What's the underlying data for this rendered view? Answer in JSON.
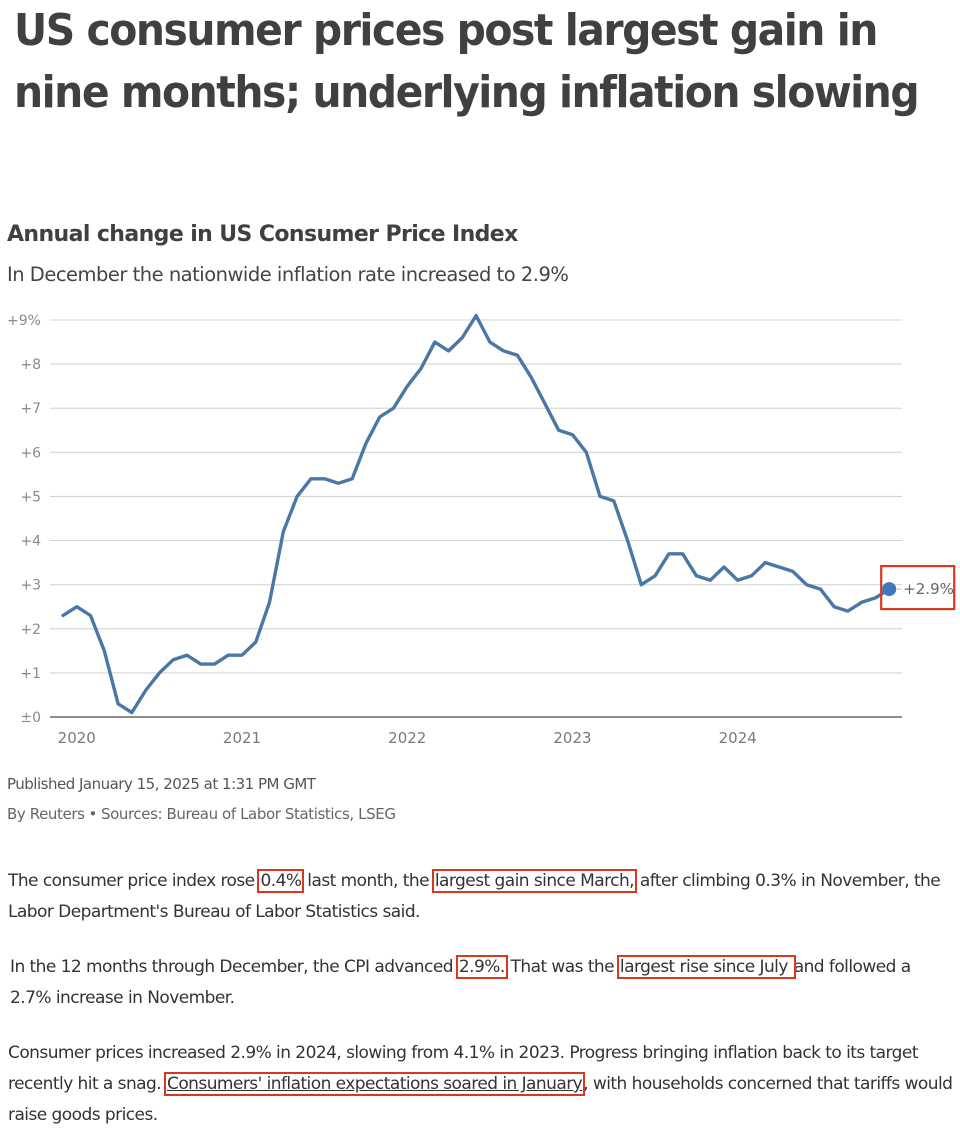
{
  "article": {
    "headline": "US consumer prices post largest gain in nine months; underlying inflation slowing"
  },
  "chart_data": {
    "type": "line",
    "title": "Annual change in US Consumer Price Index",
    "subtitle": "In December the nationwide inflation rate increased to 2.9%",
    "xlabel": "",
    "ylabel": "",
    "ylim": [
      0,
      9
    ],
    "grid": true,
    "legend": "none",
    "y_ticks": [
      {
        "value": 0,
        "label": "±0"
      },
      {
        "value": 1,
        "label": "+1"
      },
      {
        "value": 2,
        "label": "+2"
      },
      {
        "value": 3,
        "label": "+3"
      },
      {
        "value": 4,
        "label": "+4"
      },
      {
        "value": 5,
        "label": "+5"
      },
      {
        "value": 6,
        "label": "+6"
      },
      {
        "value": 7,
        "label": "+7"
      },
      {
        "value": 8,
        "label": "+8"
      },
      {
        "value": 9,
        "label": "+9%"
      }
    ],
    "x_ticks": [
      {
        "index": 1,
        "label": "2020"
      },
      {
        "index": 13,
        "label": "2021"
      },
      {
        "index": 25,
        "label": "2022"
      },
      {
        "index": 37,
        "label": "2023"
      },
      {
        "index": 49,
        "label": "2024"
      }
    ],
    "x_range": [
      "2019-12",
      "2024-12"
    ],
    "series": [
      {
        "name": "US CPI annual change (%)",
        "color": "#4a78a6",
        "x": [
          "2019-12",
          "2020-01",
          "2020-02",
          "2020-03",
          "2020-04",
          "2020-05",
          "2020-06",
          "2020-07",
          "2020-08",
          "2020-09",
          "2020-10",
          "2020-11",
          "2020-12",
          "2021-01",
          "2021-02",
          "2021-03",
          "2021-04",
          "2021-05",
          "2021-06",
          "2021-07",
          "2021-08",
          "2021-09",
          "2021-10",
          "2021-11",
          "2021-12",
          "2022-01",
          "2022-02",
          "2022-03",
          "2022-04",
          "2022-05",
          "2022-06",
          "2022-07",
          "2022-08",
          "2022-09",
          "2022-10",
          "2022-11",
          "2022-12",
          "2023-01",
          "2023-02",
          "2023-03",
          "2023-04",
          "2023-05",
          "2023-06",
          "2023-07",
          "2023-08",
          "2023-09",
          "2023-10",
          "2023-11",
          "2023-12",
          "2024-01",
          "2024-02",
          "2024-03",
          "2024-04",
          "2024-05",
          "2024-06",
          "2024-07",
          "2024-08",
          "2024-09",
          "2024-10",
          "2024-11",
          "2024-12"
        ],
        "values": [
          2.3,
          2.5,
          2.3,
          1.5,
          0.3,
          0.1,
          0.6,
          1.0,
          1.3,
          1.4,
          1.2,
          1.2,
          1.4,
          1.4,
          1.7,
          2.6,
          4.2,
          5.0,
          5.4,
          5.4,
          5.3,
          5.4,
          6.2,
          6.8,
          7.0,
          7.5,
          7.9,
          8.5,
          8.3,
          8.6,
          9.1,
          8.5,
          8.3,
          8.2,
          7.7,
          7.1,
          6.5,
          6.4,
          6.0,
          5.0,
          4.9,
          4.0,
          3.0,
          3.2,
          3.7,
          3.7,
          3.2,
          3.1,
          3.4,
          3.1,
          3.2,
          3.5,
          3.4,
          3.3,
          3.0,
          2.9,
          2.5,
          2.4,
          2.6,
          2.7,
          2.9
        ]
      }
    ],
    "annotations": [
      {
        "point": "2024-12",
        "label": "+2.9%",
        "highlight_color": "#d9381e"
      }
    ],
    "colors": {
      "line": "#4a78a6",
      "end_dot": "#3f78bd",
      "grid": "#d4d4d4",
      "baseline": "#666666",
      "highlight": "#d9381e"
    }
  },
  "meta": {
    "published": "Published January 15, 2025 at 1:31 PM GMT",
    "byline_author": "By Reuters",
    "byline_separator": "•",
    "byline_sources": "Sources: Bureau of Labor Statistics, LSEG"
  },
  "body": {
    "p1": {
      "t1": "The consumer price index rose ",
      "h1": "0.4%",
      "t2": " last month, the ",
      "h2": "largest gain since March,",
      "t3": " after climbing 0.3% in November, the Labor Department's Bureau of Labor Statistics said."
    },
    "p2": {
      "t1": "In the 12 months through December, the CPI advanced ",
      "h1": "2.9%.",
      "t2": " That was the ",
      "h2": "largest rise since July ",
      "t3": "and followed a 2.7% increase in November."
    },
    "p3": {
      "t1": "Consumer prices increased 2.9% in 2024, slowing from 4.1% in 2023. Progress bringing inflation back to its target recently hit a snag. ",
      "link": "Consumers' inflation expectations soared in January",
      "t2": ", with households concerned that tariffs would raise goods prices."
    }
  }
}
